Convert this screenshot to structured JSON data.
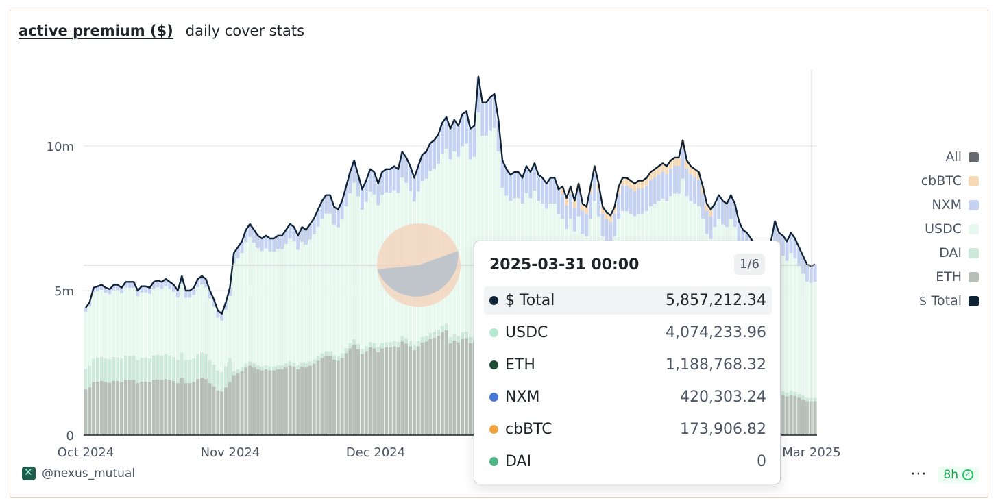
{
  "header": {
    "title": "active premium ($)",
    "subtitle": "daily cover stats"
  },
  "legend": [
    {
      "label": "All",
      "color": "#666a6e"
    },
    {
      "label": "cbBTC",
      "color": "#f8d9b5"
    },
    {
      "label": "NXM",
      "color": "#c6d2f2"
    },
    {
      "label": "USDC",
      "color": "#e7f8ee"
    },
    {
      "label": "DAI",
      "color": "#cce9d9"
    },
    {
      "label": "ETH",
      "color": "#b6c0b8"
    },
    {
      "label": "$ Total",
      "color": "#0f2336"
    }
  ],
  "tooltip": {
    "date": "2025-03-31 00:00",
    "page": "1/6",
    "rows": [
      {
        "name": "$ Total",
        "value": "5,857,212.34",
        "color": "#0f2336"
      },
      {
        "name": "USDC",
        "value": "4,074,233.96",
        "color": "#b4ebd0"
      },
      {
        "name": "ETH",
        "value": "1,188,768.32",
        "color": "#1f4d36"
      },
      {
        "name": "NXM",
        "value": "420,303.24",
        "color": "#4a78d6"
      },
      {
        "name": "cbBTC",
        "value": "173,906.82",
        "color": "#f0a33f"
      },
      {
        "name": "DAI",
        "value": "0",
        "color": "#4fb383"
      }
    ]
  },
  "footer": {
    "handle": "@nexus_mutual",
    "more": "···",
    "freshness": "8h"
  },
  "chart_data": {
    "type": "area",
    "x_axis_ticks": [
      "Oct 2024",
      "Nov 2024",
      "Dec 2024",
      "Mar 2025"
    ],
    "y_axis_ticks": [
      "0",
      "5m",
      "10m"
    ],
    "ylim": [
      0,
      12600000
    ],
    "hover_date": "2025-03-31",
    "series_total": [
      4.4,
      4.6,
      5.1,
      5.15,
      5.2,
      5.1,
      5.05,
      5.2,
      5.2,
      5.1,
      5.3,
      5.3,
      5.3,
      5.0,
      5.15,
      5.15,
      5.1,
      5.3,
      5.35,
      5.3,
      5.4,
      5.3,
      5.2,
      5.0,
      5.5,
      5.0,
      5.0,
      5.1,
      5.4,
      5.5,
      5.4,
      5.0,
      4.7,
      4.3,
      4.2,
      4.6,
      5.1,
      6.3,
      6.5,
      6.7,
      7.1,
      7.3,
      7.1,
      6.9,
      6.8,
      6.9,
      6.8,
      6.8,
      6.9,
      6.9,
      7.1,
      7.3,
      7.2,
      6.9,
      7.2,
      7.1,
      7.3,
      7.5,
      7.8,
      8.1,
      8.3,
      8.3,
      7.9,
      7.8,
      8.1,
      8.6,
      9.1,
      9.5,
      9.0,
      8.5,
      8.8,
      9.2,
      9.1,
      8.7,
      9.1,
      9.2,
      9.2,
      9.3,
      9.2,
      9.8,
      9.6,
      9.3,
      8.9,
      9.3,
      9.7,
      9.8,
      10.1,
      10.2,
      10.4,
      10.8,
      11.0,
      10.6,
      10.9,
      10.7,
      11.1,
      11.2,
      10.6,
      10.7,
      12.4,
      11.5,
      11.5,
      11.7,
      11.8,
      10.9,
      9.5,
      9.2,
      9.0,
      9.1,
      9.1,
      8.9,
      9.3,
      9.1,
      9.4,
      9.0,
      8.9,
      8.7,
      8.9,
      8.9,
      8.5,
      8.6,
      8.2,
      8.6,
      8.1,
      8.7,
      8.0,
      7.9,
      8.6,
      9.3,
      8.7,
      7.9,
      7.7,
      7.6,
      7.9,
      8.6,
      8.9,
      8.9,
      8.8,
      8.7,
      8.8,
      8.8,
      8.9,
      9.1,
      9.2,
      9.3,
      9.4,
      9.3,
      9.5,
      9.6,
      9.6,
      10.2,
      9.5,
      9.3,
      9.2,
      9.1,
      8.6,
      8.0,
      7.8,
      8.0,
      8.3,
      8.1,
      8.0,
      8.3,
      8.0,
      7.4,
      7.1,
      7.0,
      6.8,
      6.6,
      6.3,
      6.0,
      6.3,
      6.7,
      7.4,
      7.0,
      6.9,
      6.7,
      7.0,
      6.8,
      6.5,
      6.2,
      5.9,
      5.85,
      5.9
    ]
  }
}
